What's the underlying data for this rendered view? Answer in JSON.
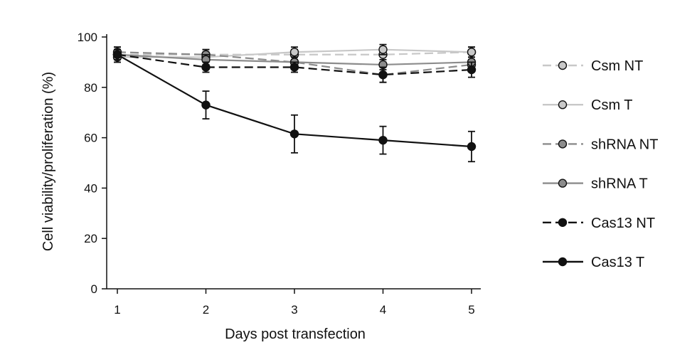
{
  "chart_data": {
    "type": "line",
    "xlabel": "Days post transfection",
    "ylabel": "Cell viability/proliferation (%)",
    "xlim": [
      1,
      5
    ],
    "ylim": [
      0,
      100
    ],
    "x": [
      1,
      2,
      3,
      4,
      5
    ],
    "x_ticks": [
      1,
      2,
      3,
      4,
      5
    ],
    "y_ticks": [
      0,
      20,
      40,
      60,
      80,
      100
    ],
    "grid": false,
    "legend_position": "right",
    "series": [
      {
        "name": "Csm NT",
        "color": "#c8c8c8",
        "dash": true,
        "values": [
          93,
          93,
          93,
          93,
          94
        ],
        "errors": [
          2,
          2,
          2,
          3,
          2
        ]
      },
      {
        "name": "Csm T",
        "color": "#c8c8c8",
        "dash": false,
        "values": [
          92,
          92,
          94,
          95,
          94
        ],
        "errors": [
          2,
          2,
          2,
          2,
          2
        ]
      },
      {
        "name": "shRNA NT",
        "color": "#8c8c8c",
        "dash": true,
        "values": [
          94,
          93,
          90,
          85,
          89
        ],
        "errors": [
          2,
          2,
          2,
          3,
          2
        ]
      },
      {
        "name": "shRNA T",
        "color": "#8c8c8c",
        "dash": false,
        "values": [
          93,
          91,
          90,
          89,
          90
        ],
        "errors": [
          2,
          2,
          2,
          2,
          2
        ]
      },
      {
        "name": "Cas13 NT",
        "color": "#111111",
        "dash": true,
        "values": [
          93,
          88,
          88,
          85,
          87
        ],
        "errors": [
          2,
          2,
          2,
          3,
          3
        ]
      },
      {
        "name": "Cas13 T",
        "color": "#111111",
        "dash": false,
        "values": [
          93,
          73,
          61.5,
          59,
          56.5
        ],
        "errors": [
          3,
          5.5,
          7.5,
          5.5,
          6
        ]
      }
    ]
  }
}
